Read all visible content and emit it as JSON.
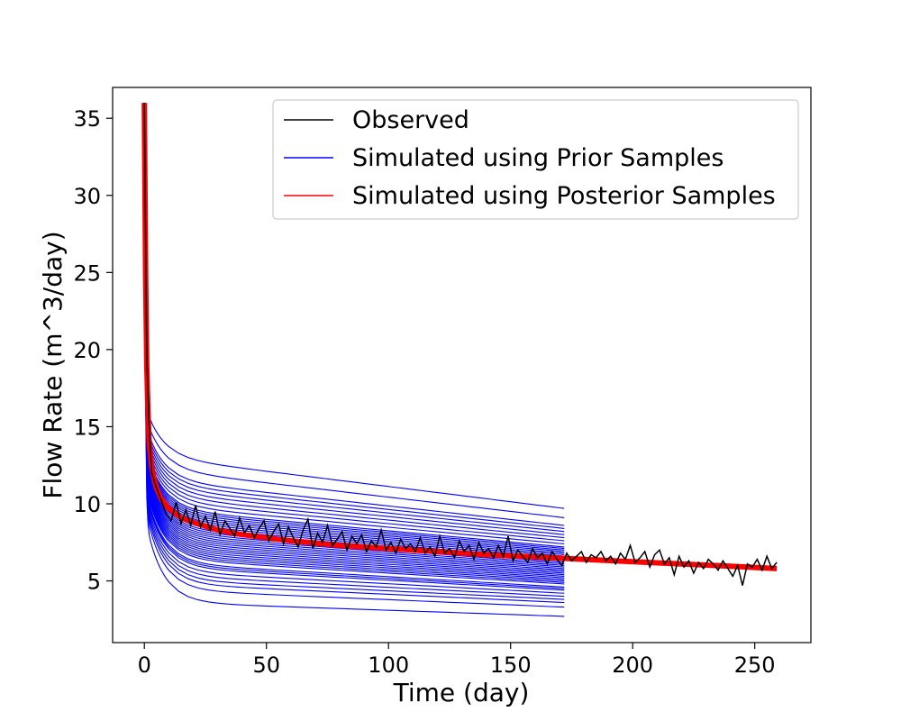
{
  "chart_data": {
    "type": "line",
    "title": "",
    "xlabel": "Time (day)",
    "ylabel": "Flow Rate (m^3/day)",
    "xlim": [
      -13,
      273
    ],
    "ylim": [
      1,
      37
    ],
    "xticks": [
      0,
      50,
      100,
      150,
      200,
      250
    ],
    "yticks": [
      5,
      10,
      15,
      20,
      25,
      30,
      35
    ],
    "grid": false,
    "legend": {
      "placement": "top-right",
      "entries": [
        {
          "label": "Observed",
          "color": "#000000"
        },
        {
          "label": "Simulated using Prior Samples",
          "color": "#0000ff"
        },
        {
          "label": "Simulated using Posterior Samples",
          "color": "#ff0000"
        }
      ]
    },
    "series": [
      {
        "name": "Observed",
        "color": "#000000",
        "x": [
          0,
          1,
          2,
          3,
          5,
          7,
          9,
          11,
          13,
          15,
          17,
          19,
          21,
          23,
          25,
          27,
          29,
          31,
          33,
          35,
          37,
          39,
          41,
          43,
          45,
          47,
          49,
          51,
          53,
          55,
          57,
          59,
          61,
          63,
          65,
          67,
          69,
          71,
          73,
          75,
          77,
          79,
          81,
          83,
          85,
          87,
          89,
          91,
          93,
          95,
          97,
          99,
          101,
          103,
          105,
          107,
          109,
          111,
          113,
          115,
          117,
          119,
          121,
          123,
          125,
          127,
          129,
          131,
          133,
          135,
          137,
          139,
          141,
          143,
          145,
          147,
          149,
          151,
          153,
          155,
          157,
          159,
          161,
          163,
          165,
          167,
          169,
          171,
          173,
          175,
          177,
          179,
          181,
          183,
          185,
          187,
          189,
          191,
          193,
          195,
          197,
          199,
          201,
          203,
          205,
          207,
          209,
          211,
          213,
          215,
          217,
          219,
          221,
          223,
          225,
          227,
          229,
          231,
          233,
          235,
          237,
          239,
          241,
          243,
          245,
          247,
          249,
          251,
          253,
          255,
          257,
          259
        ],
        "y": [
          36.0,
          19.5,
          15.0,
          12.0,
          11.0,
          10.2,
          9.3,
          8.9,
          10.1,
          8.7,
          9.6,
          8.6,
          9.9,
          8.5,
          9.2,
          8.3,
          9.5,
          8.0,
          8.9,
          8.4,
          7.9,
          9.1,
          8.1,
          8.6,
          7.8,
          8.4,
          8.9,
          7.6,
          8.2,
          8.7,
          7.4,
          8.5,
          7.8,
          7.2,
          8.3,
          9.0,
          7.1,
          8.1,
          7.5,
          8.6,
          7.3,
          7.7,
          8.2,
          7.0,
          7.9,
          7.4,
          8.0,
          6.9,
          7.6,
          7.2,
          8.3,
          7.0,
          7.5,
          6.8,
          7.7,
          7.1,
          7.4,
          6.9,
          7.8,
          6.8,
          7.2,
          6.6,
          7.9,
          6.8,
          7.1,
          6.5,
          7.6,
          6.9,
          7.3,
          6.4,
          7.5,
          6.8,
          7.1,
          6.5,
          7.3,
          6.6,
          7.9,
          6.3,
          7.0,
          6.6,
          6.2,
          7.1,
          6.5,
          6.8,
          6.1,
          6.9,
          6.4,
          6.0,
          6.8,
          6.3,
          6.6,
          6.9,
          6.2,
          6.7,
          6.5,
          6.9,
          6.3,
          6.6,
          6.1,
          6.8,
          6.4,
          7.3,
          6.2,
          6.5,
          6.9,
          5.9,
          6.7,
          7.0,
          6.1,
          6.5,
          5.4,
          6.6,
          5.9,
          6.3,
          5.5,
          6.2,
          5.8,
          6.4,
          6.1,
          5.7,
          6.3,
          5.8,
          5.3,
          6.0,
          4.7,
          6.1,
          5.9,
          6.4,
          5.7,
          6.6,
          5.8,
          6.2
        ]
      },
      {
        "name": "Simulated using Posterior Samples",
        "color": "#ff0000",
        "x": [
          0,
          0.5,
          1,
          1.5,
          2,
          3,
          4,
          5,
          7,
          10,
          15,
          20,
          30,
          40,
          50,
          60,
          80,
          100,
          120,
          140,
          160,
          180,
          200,
          220,
          240,
          259
        ],
        "y": [
          36.0,
          25.0,
          19.0,
          15.8,
          14.0,
          12.4,
          11.6,
          11.0,
          10.3,
          9.7,
          9.1,
          8.8,
          8.3,
          8.0,
          7.8,
          7.6,
          7.3,
          7.1,
          6.9,
          6.7,
          6.55,
          6.4,
          6.25,
          6.1,
          5.95,
          5.8
        ]
      }
    ],
    "prior_ensemble": {
      "name": "Simulated using Prior Samples",
      "color": "#0000ff",
      "end_day": 172,
      "final_values": [
        2.7,
        3.3,
        3.6,
        3.8,
        4.0,
        4.2,
        4.4,
        4.5,
        4.6,
        4.8,
        4.9,
        5.0,
        5.1,
        5.2,
        5.3,
        5.4,
        5.5,
        5.6,
        5.7,
        5.8,
        5.9,
        6.0,
        6.1,
        6.2,
        6.3,
        6.4,
        6.5,
        6.6,
        6.7,
        6.8,
        6.9,
        7.0,
        7.1,
        7.2,
        7.4,
        7.6,
        7.8,
        8.0,
        8.2,
        8.4,
        8.6,
        9.1,
        9.7
      ],
      "peak_value": 36.0
    }
  }
}
